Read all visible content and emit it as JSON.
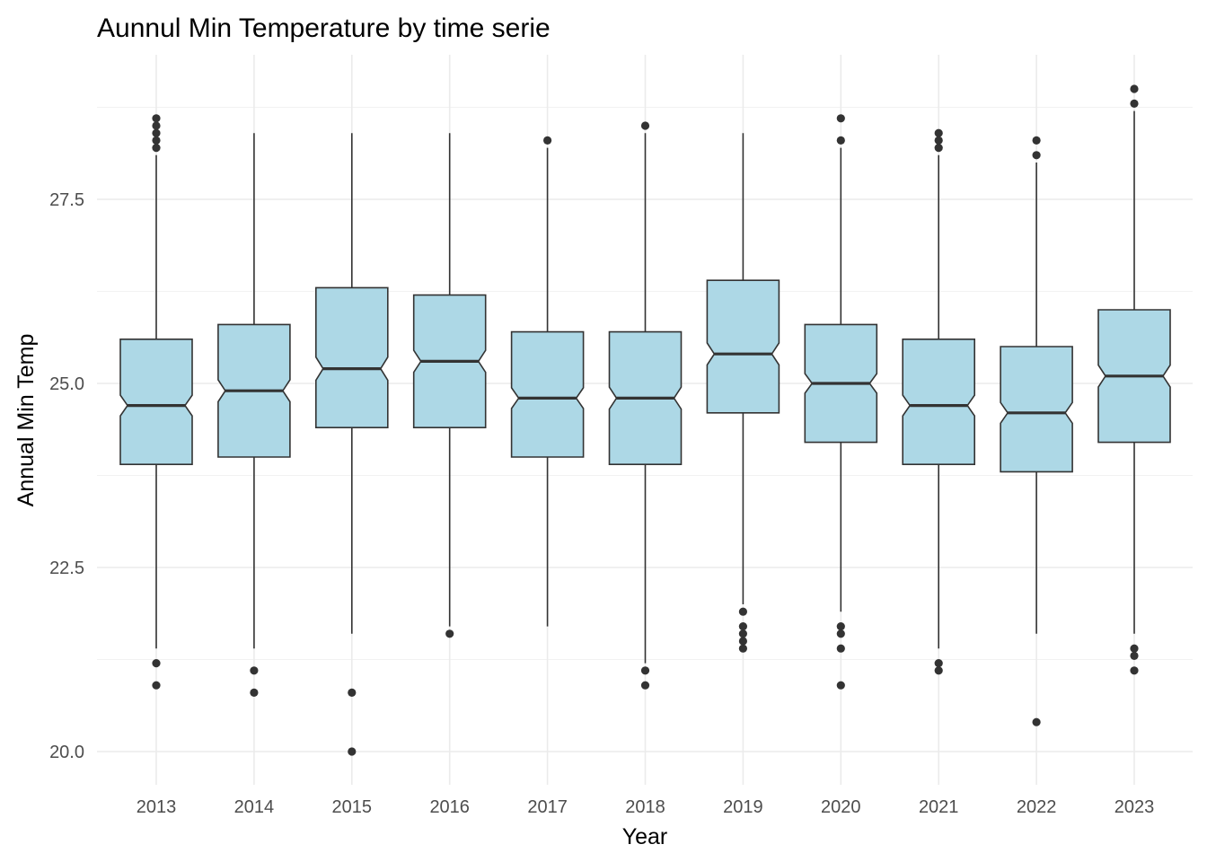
{
  "chart_data": {
    "type": "boxplot",
    "notched": true,
    "title": "Aunnul Min Temperature by time serie",
    "xlabel": "Year",
    "ylabel": "Annual Min Temp",
    "ylim": [
      19.6,
      29.5
    ],
    "yticks": [
      {
        "value": 20.0,
        "label": "20.0"
      },
      {
        "value": 22.5,
        "label": "22.5"
      },
      {
        "value": 25.0,
        "label": "25.0"
      },
      {
        "value": 27.5,
        "label": "27.5"
      }
    ],
    "grid": true,
    "colors": {
      "fill": "#add8e6",
      "line": "#333333",
      "grid": "#ebebeb"
    },
    "categories": [
      "2013",
      "2014",
      "2015",
      "2016",
      "2017",
      "2018",
      "2019",
      "2020",
      "2021",
      "2022",
      "2023"
    ],
    "boxes": [
      {
        "year": "2013",
        "lower_whisker": 21.4,
        "q1": 23.9,
        "median": 24.7,
        "q3": 25.6,
        "upper_whisker": 28.1,
        "outliers": [
          20.9,
          21.2,
          28.2,
          28.3,
          28.4,
          28.5,
          28.6
        ]
      },
      {
        "year": "2014",
        "lower_whisker": 21.4,
        "q1": 24.0,
        "median": 24.9,
        "q3": 25.8,
        "upper_whisker": 28.4,
        "outliers": [
          20.8,
          21.1
        ]
      },
      {
        "year": "2015",
        "lower_whisker": 21.6,
        "q1": 24.4,
        "median": 25.2,
        "q3": 26.3,
        "upper_whisker": 28.4,
        "outliers": [
          20.0,
          20.8
        ]
      },
      {
        "year": "2016",
        "lower_whisker": 21.7,
        "q1": 24.4,
        "median": 25.3,
        "q3": 26.2,
        "upper_whisker": 28.4,
        "outliers": [
          21.6
        ]
      },
      {
        "year": "2017",
        "lower_whisker": 21.7,
        "q1": 24.0,
        "median": 24.8,
        "q3": 25.7,
        "upper_whisker": 28.2,
        "outliers": [
          28.3
        ]
      },
      {
        "year": "2018",
        "lower_whisker": 21.2,
        "q1": 23.9,
        "median": 24.8,
        "q3": 25.7,
        "upper_whisker": 28.4,
        "outliers": [
          20.9,
          21.1,
          28.5
        ]
      },
      {
        "year": "2019",
        "lower_whisker": 22.0,
        "q1": 24.6,
        "median": 25.4,
        "q3": 26.4,
        "upper_whisker": 28.4,
        "outliers": [
          21.4,
          21.5,
          21.6,
          21.7,
          21.9
        ]
      },
      {
        "year": "2020",
        "lower_whisker": 21.9,
        "q1": 24.2,
        "median": 25.0,
        "q3": 25.8,
        "upper_whisker": 28.2,
        "outliers": [
          20.9,
          21.4,
          21.6,
          21.7,
          28.3,
          28.6
        ]
      },
      {
        "year": "2021",
        "lower_whisker": 21.4,
        "q1": 23.9,
        "median": 24.7,
        "q3": 25.6,
        "upper_whisker": 28.1,
        "outliers": [
          21.1,
          21.2,
          28.2,
          28.3,
          28.4
        ]
      },
      {
        "year": "2022",
        "lower_whisker": 21.6,
        "q1": 23.8,
        "median": 24.6,
        "q3": 25.5,
        "upper_whisker": 28.0,
        "outliers": [
          20.4,
          28.1,
          28.3
        ]
      },
      {
        "year": "2023",
        "lower_whisker": 21.6,
        "q1": 24.2,
        "median": 25.1,
        "q3": 26.0,
        "upper_whisker": 28.7,
        "outliers": [
          21.1,
          21.3,
          21.4,
          28.8,
          29.0
        ]
      }
    ]
  }
}
